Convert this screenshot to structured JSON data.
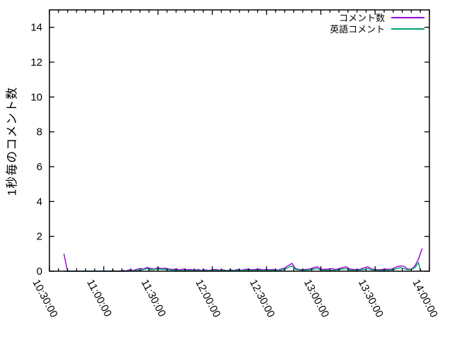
{
  "chart_data": {
    "type": "line",
    "title": "",
    "xlabel": "",
    "ylabel": "1秒毎のコメント数",
    "background_color": "#ffffff",
    "text_color": "#000000",
    "border_color": "#000000",
    "grid": false,
    "legend_position": "top-right",
    "ylim": [
      0,
      15
    ],
    "y_ticks": [
      0,
      2,
      4,
      6,
      8,
      10,
      12,
      14
    ],
    "x_range": [
      "10:30:00",
      "14:00:00"
    ],
    "x_tick_labels": [
      "10:30:00",
      "11:00:00",
      "11:30:00",
      "12:00:00",
      "12:30:00",
      "13:00:00",
      "13:30:00",
      "14:00:00"
    ],
    "x_major_tick_minutes": 30,
    "x_minor_tick_minutes": 5,
    "series": [
      {
        "name": "コメント数",
        "color": "#9400d3",
        "points": [
          [
            "10:38",
            1.0
          ],
          [
            "10:40",
            0
          ],
          [
            "11:04",
            0
          ],
          [
            "11:05",
            0.06
          ],
          [
            "11:06",
            0
          ],
          [
            "11:10",
            0
          ],
          [
            "11:11",
            0.06
          ],
          [
            "11:12",
            0
          ],
          [
            "11:14",
            0.08
          ],
          [
            "11:16",
            0.04
          ],
          [
            "11:18",
            0.1
          ],
          [
            "11:20",
            0.15
          ],
          [
            "11:22",
            0.12
          ],
          [
            "11:24",
            0.22
          ],
          [
            "11:26",
            0.15
          ],
          [
            "11:28",
            0.12
          ],
          [
            "11:30",
            0.2
          ],
          [
            "11:32",
            0.15
          ],
          [
            "11:34",
            0.18
          ],
          [
            "11:36",
            0.12
          ],
          [
            "11:38",
            0.1
          ],
          [
            "11:40",
            0.12
          ],
          [
            "11:42",
            0.08
          ],
          [
            "11:44",
            0.12
          ],
          [
            "11:46",
            0.08
          ],
          [
            "11:48",
            0.1
          ],
          [
            "11:50",
            0.06
          ],
          [
            "11:52",
            0.1
          ],
          [
            "11:54",
            0.05
          ],
          [
            "11:56",
            0.08
          ],
          [
            "11:58",
            0.05
          ],
          [
            "12:00",
            0.08
          ],
          [
            "12:02",
            0.1
          ],
          [
            "12:04",
            0.06
          ],
          [
            "12:06",
            0.08
          ],
          [
            "12:08",
            0.04
          ],
          [
            "12:10",
            0.08
          ],
          [
            "12:12",
            0.05
          ],
          [
            "12:14",
            0.1
          ],
          [
            "12:16",
            0.06
          ],
          [
            "12:18",
            0.1
          ],
          [
            "12:20",
            0.12
          ],
          [
            "12:22",
            0.08
          ],
          [
            "12:24",
            0.1
          ],
          [
            "12:26",
            0.12
          ],
          [
            "12:28",
            0.08
          ],
          [
            "12:30",
            0.1
          ],
          [
            "12:32",
            0.08
          ],
          [
            "12:34",
            0.1
          ],
          [
            "12:36",
            0.06
          ],
          [
            "12:38",
            0.12
          ],
          [
            "12:40",
            0.18
          ],
          [
            "12:42",
            0.32
          ],
          [
            "12:44",
            0.45
          ],
          [
            "12:46",
            0.15
          ],
          [
            "12:48",
            0.1
          ],
          [
            "12:50",
            0.08
          ],
          [
            "12:52",
            0.1
          ],
          [
            "12:54",
            0.12
          ],
          [
            "12:56",
            0.2
          ],
          [
            "12:58",
            0.25
          ],
          [
            "13:00",
            0.12
          ],
          [
            "13:02",
            0.1
          ],
          [
            "13:04",
            0.12
          ],
          [
            "13:06",
            0.15
          ],
          [
            "13:08",
            0.1
          ],
          [
            "13:10",
            0.15
          ],
          [
            "13:12",
            0.2
          ],
          [
            "13:14",
            0.25
          ],
          [
            "13:16",
            0.12
          ],
          [
            "13:18",
            0.1
          ],
          [
            "13:20",
            0.08
          ],
          [
            "13:22",
            0.12
          ],
          [
            "13:24",
            0.2
          ],
          [
            "13:26",
            0.25
          ],
          [
            "13:28",
            0.12
          ],
          [
            "13:30",
            0.1
          ],
          [
            "13:32",
            0.08
          ],
          [
            "13:34",
            0.1
          ],
          [
            "13:36",
            0.12
          ],
          [
            "13:38",
            0.1
          ],
          [
            "13:40",
            0.15
          ],
          [
            "13:42",
            0.25
          ],
          [
            "13:44",
            0.3
          ],
          [
            "13:46",
            0.28
          ],
          [
            "13:48",
            0.12
          ],
          [
            "13:50",
            0.1
          ],
          [
            "13:52",
            0.3
          ],
          [
            "13:54",
            0.7
          ],
          [
            "13:56",
            1.3
          ]
        ]
      },
      {
        "name": "英語コメント",
        "color": "#009e73",
        "points": [
          [
            "10:38",
            0
          ],
          [
            "11:14",
            0
          ],
          [
            "11:18",
            0.04
          ],
          [
            "11:20",
            0.05
          ],
          [
            "11:24",
            0.15
          ],
          [
            "11:26",
            0.08
          ],
          [
            "11:30",
            0.12
          ],
          [
            "11:34",
            0.1
          ],
          [
            "11:38",
            0.06
          ],
          [
            "11:42",
            0.05
          ],
          [
            "11:46",
            0.04
          ],
          [
            "11:50",
            0.04
          ],
          [
            "11:54",
            0.03
          ],
          [
            "11:58",
            0.04
          ],
          [
            "12:02",
            0.05
          ],
          [
            "12:06",
            0.04
          ],
          [
            "12:10",
            0.04
          ],
          [
            "12:14",
            0.05
          ],
          [
            "12:18",
            0.06
          ],
          [
            "12:22",
            0.05
          ],
          [
            "12:26",
            0.06
          ],
          [
            "12:30",
            0.05
          ],
          [
            "12:34",
            0.05
          ],
          [
            "12:38",
            0.06
          ],
          [
            "12:40",
            0.1
          ],
          [
            "12:42",
            0.22
          ],
          [
            "12:44",
            0.3
          ],
          [
            "12:46",
            0.1
          ],
          [
            "12:50",
            0.05
          ],
          [
            "12:54",
            0.08
          ],
          [
            "12:56",
            0.12
          ],
          [
            "12:58",
            0.15
          ],
          [
            "13:00",
            0.06
          ],
          [
            "13:04",
            0.05
          ],
          [
            "13:08",
            0.06
          ],
          [
            "13:12",
            0.12
          ],
          [
            "13:14",
            0.15
          ],
          [
            "13:16",
            0.06
          ],
          [
            "13:20",
            0.05
          ],
          [
            "13:24",
            0.1
          ],
          [
            "13:26",
            0.15
          ],
          [
            "13:28",
            0.08
          ],
          [
            "13:32",
            0.05
          ],
          [
            "13:36",
            0.05
          ],
          [
            "13:40",
            0.08
          ],
          [
            "13:42",
            0.15
          ],
          [
            "13:44",
            0.2
          ],
          [
            "13:46",
            0.15
          ],
          [
            "13:48",
            0.08
          ],
          [
            "13:50",
            0.1
          ],
          [
            "13:52",
            0.2
          ],
          [
            "13:54",
            0.5
          ],
          [
            "13:55",
            0.05
          ],
          [
            "13:56",
            0
          ]
        ]
      }
    ]
  }
}
